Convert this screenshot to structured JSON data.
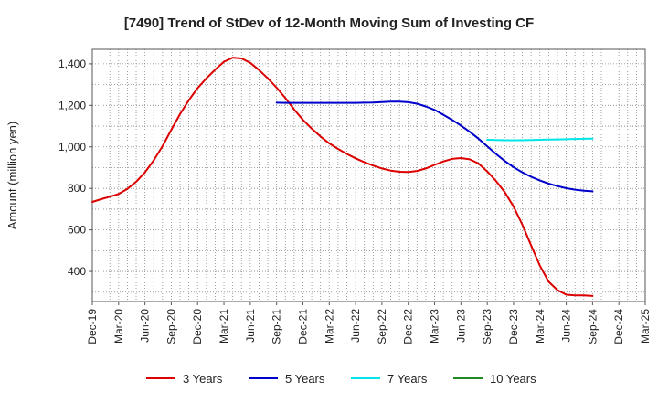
{
  "chart_data": {
    "type": "line",
    "title": "[7490]  Trend of StDev of 12-Month Moving Sum of Investing CF",
    "ylabel": "Amount (million yen)",
    "xlabel": "",
    "x_ticks": [
      "Dec-19",
      "Mar-20",
      "Jun-20",
      "Sep-20",
      "Dec-20",
      "Mar-21",
      "Jun-21",
      "Sep-21",
      "Dec-21",
      "Mar-22",
      "Jun-22",
      "Sep-22",
      "Dec-22",
      "Mar-23",
      "Jun-23",
      "Sep-23",
      "Dec-23",
      "Mar-24",
      "Jun-24",
      "Sep-24",
      "Dec-24",
      "Mar-25"
    ],
    "y_ticks": [
      400,
      600,
      800,
      1000,
      1200,
      1400
    ],
    "ylim": [
      255,
      1470
    ],
    "grid": true,
    "legend_position": "bottom",
    "series": [
      {
        "name": "3 Years",
        "color": "#dd0000",
        "start_index": 0,
        "values": [
          735,
          748,
          760,
          773,
          798,
          832,
          877,
          935,
          1003,
          1082,
          1158,
          1225,
          1283,
          1330,
          1372,
          1410,
          1430,
          1426,
          1405,
          1370,
          1330,
          1285,
          1235,
          1180,
          1130,
          1088,
          1050,
          1017,
          990,
          966,
          945,
          926,
          910,
          896,
          886,
          880,
          879,
          884,
          896,
          913,
          930,
          942,
          946,
          940,
          920,
          882,
          836,
          782,
          712,
          625,
          525,
          427,
          350,
          310,
          288,
          285,
          285,
          282
        ]
      },
      {
        "name": "5 Years",
        "color": "#0000cc",
        "start_index": 21,
        "values": [
          1213,
          1212,
          1212,
          1212,
          1212,
          1212,
          1212,
          1212,
          1212,
          1212,
          1213,
          1214,
          1216,
          1218,
          1218,
          1215,
          1208,
          1195,
          1178,
          1155,
          1130,
          1103,
          1073,
          1040,
          1003,
          966,
          932,
          902,
          877,
          856,
          838,
          823,
          811,
          801,
          794,
          789,
          786
        ]
      },
      {
        "name": "7 Years",
        "color": "#00e5e5",
        "start_index": 45,
        "values": [
          1034,
          1033,
          1032,
          1032,
          1032,
          1033,
          1034,
          1035,
          1036,
          1037,
          1038,
          1039,
          1040
        ]
      },
      {
        "name": "10 Years",
        "color": "#228822",
        "start_index": 0,
        "values": []
      }
    ]
  }
}
